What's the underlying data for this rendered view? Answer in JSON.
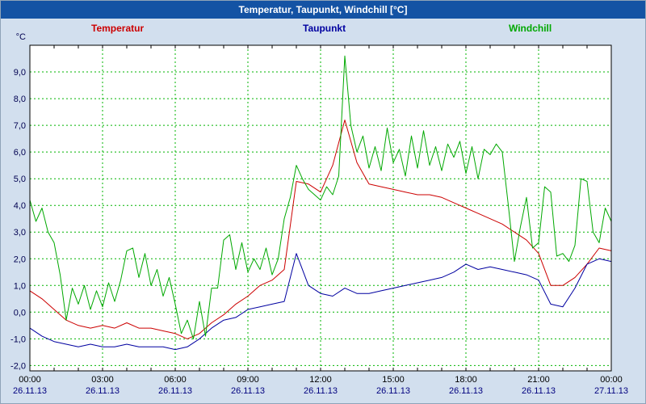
{
  "window": {
    "title": "Temperatur, Taupunkt, Windchill [°C]"
  },
  "legend": [
    {
      "label": "Temperatur",
      "color": "#cc0000"
    },
    {
      "label": "Taupunkt",
      "color": "#0000a0"
    },
    {
      "label": "Windchill",
      "color": "#00a800"
    }
  ],
  "colors": {
    "titlebar": "#1453a4",
    "background": "#d2dfee",
    "plot_background": "#ffffff",
    "grid": "#00b400",
    "axis_text": "#000050",
    "date_text": "#00007f",
    "time_text": "#000000",
    "border": "#000000"
  },
  "chart_data": {
    "type": "line",
    "title": "Temperatur, Taupunkt, Windchill [°C]",
    "y_unit": "°C",
    "ylim": [
      -2.2,
      10.0
    ],
    "xlim_hours": [
      0,
      24
    ],
    "grid": true,
    "grid_style": "dashed-green",
    "legend_position": "top",
    "y_ticks": [
      {
        "value": 9,
        "label": "9,0"
      },
      {
        "value": 8,
        "label": "8,0"
      },
      {
        "value": 7,
        "label": "7,0"
      },
      {
        "value": 6,
        "label": "6,0"
      },
      {
        "value": 5,
        "label": "5,0"
      },
      {
        "value": 4,
        "label": "4,0"
      },
      {
        "value": 3,
        "label": "3,0"
      },
      {
        "value": 2,
        "label": "2,0"
      },
      {
        "value": 1,
        "label": "1,0"
      },
      {
        "value": 0,
        "label": "0,0"
      },
      {
        "value": -1,
        "label": "-1,0"
      },
      {
        "value": -2,
        "label": "-2,0"
      }
    ],
    "x_ticks": [
      {
        "hour": 0,
        "time": "00:00",
        "date": "26.11.13"
      },
      {
        "hour": 3,
        "time": "03:00",
        "date": "26.11.13"
      },
      {
        "hour": 6,
        "time": "06:00",
        "date": "26.11.13"
      },
      {
        "hour": 9,
        "time": "09:00",
        "date": "26.11.13"
      },
      {
        "hour": 12,
        "time": "12:00",
        "date": "26.11.13"
      },
      {
        "hour": 15,
        "time": "15:00",
        "date": "26.11.13"
      },
      {
        "hour": 18,
        "time": "18:00",
        "date": "26.11.13"
      },
      {
        "hour": 21,
        "time": "21:00",
        "date": "26.11.13"
      },
      {
        "hour": 24,
        "time": "00:00",
        "date": "27.11.13"
      }
    ],
    "series": [
      {
        "name": "Temperatur",
        "color": "#cc0000",
        "x_start": 0,
        "x_step": 0.5,
        "values": [
          0.8,
          0.5,
          0.1,
          -0.3,
          -0.5,
          -0.6,
          -0.5,
          -0.6,
          -0.4,
          -0.6,
          -0.6,
          -0.7,
          -0.8,
          -1.0,
          -0.8,
          -0.4,
          -0.1,
          0.3,
          0.6,
          1.0,
          1.2,
          1.6,
          4.9,
          4.8,
          4.5,
          5.5,
          7.2,
          5.6,
          4.8,
          4.7,
          4.6,
          4.5,
          4.4,
          4.4,
          4.3,
          4.1,
          3.9,
          3.7,
          3.5,
          3.3,
          3.0,
          2.7,
          2.2,
          1.0,
          1.0,
          1.3,
          1.8,
          2.4,
          2.3
        ]
      },
      {
        "name": "Taupunkt",
        "color": "#0000a0",
        "x_start": 0,
        "x_step": 0.5,
        "values": [
          -0.6,
          -0.9,
          -1.1,
          -1.2,
          -1.3,
          -1.2,
          -1.3,
          -1.3,
          -1.2,
          -1.3,
          -1.3,
          -1.3,
          -1.4,
          -1.3,
          -1.0,
          -0.6,
          -0.3,
          -0.2,
          0.1,
          0.2,
          0.3,
          0.4,
          2.2,
          1.0,
          0.7,
          0.6,
          0.9,
          0.7,
          0.7,
          0.8,
          0.9,
          1.0,
          1.1,
          1.2,
          1.3,
          1.5,
          1.8,
          1.6,
          1.7,
          1.6,
          1.5,
          1.4,
          1.2,
          0.3,
          0.2,
          0.9,
          1.8,
          2.0,
          1.9
        ]
      },
      {
        "name": "Windchill",
        "color": "#00a800",
        "x_start": 0,
        "x_step": 0.25,
        "values": [
          4.2,
          3.4,
          3.9,
          3.0,
          2.6,
          1.4,
          -0.3,
          0.9,
          0.3,
          1.0,
          0.1,
          0.8,
          0.2,
          1.1,
          0.4,
          1.2,
          2.3,
          2.4,
          1.3,
          2.2,
          1.0,
          1.6,
          0.6,
          1.3,
          0.3,
          -0.8,
          -0.3,
          -1.0,
          0.4,
          -0.9,
          0.9,
          0.9,
          2.7,
          2.9,
          1.6,
          2.6,
          1.5,
          2.0,
          1.6,
          2.4,
          1.4,
          2.0,
          3.5,
          4.3,
          5.5,
          5.0,
          4.6,
          4.4,
          4.2,
          4.7,
          4.4,
          5.1,
          9.6,
          7.0,
          6.0,
          6.6,
          5.4,
          6.2,
          5.3,
          6.9,
          5.6,
          6.1,
          5.1,
          6.6,
          5.4,
          6.8,
          5.5,
          6.2,
          5.3,
          6.3,
          5.8,
          6.4,
          5.2,
          6.2,
          5.0,
          6.1,
          5.9,
          6.3,
          6.0,
          4.0,
          1.9,
          3.2,
          4.3,
          2.4,
          2.6,
          4.7,
          4.5,
          2.1,
          2.2,
          1.9,
          2.5,
          5.0,
          4.9,
          3.0,
          2.6,
          3.9,
          3.4
        ]
      }
    ]
  }
}
